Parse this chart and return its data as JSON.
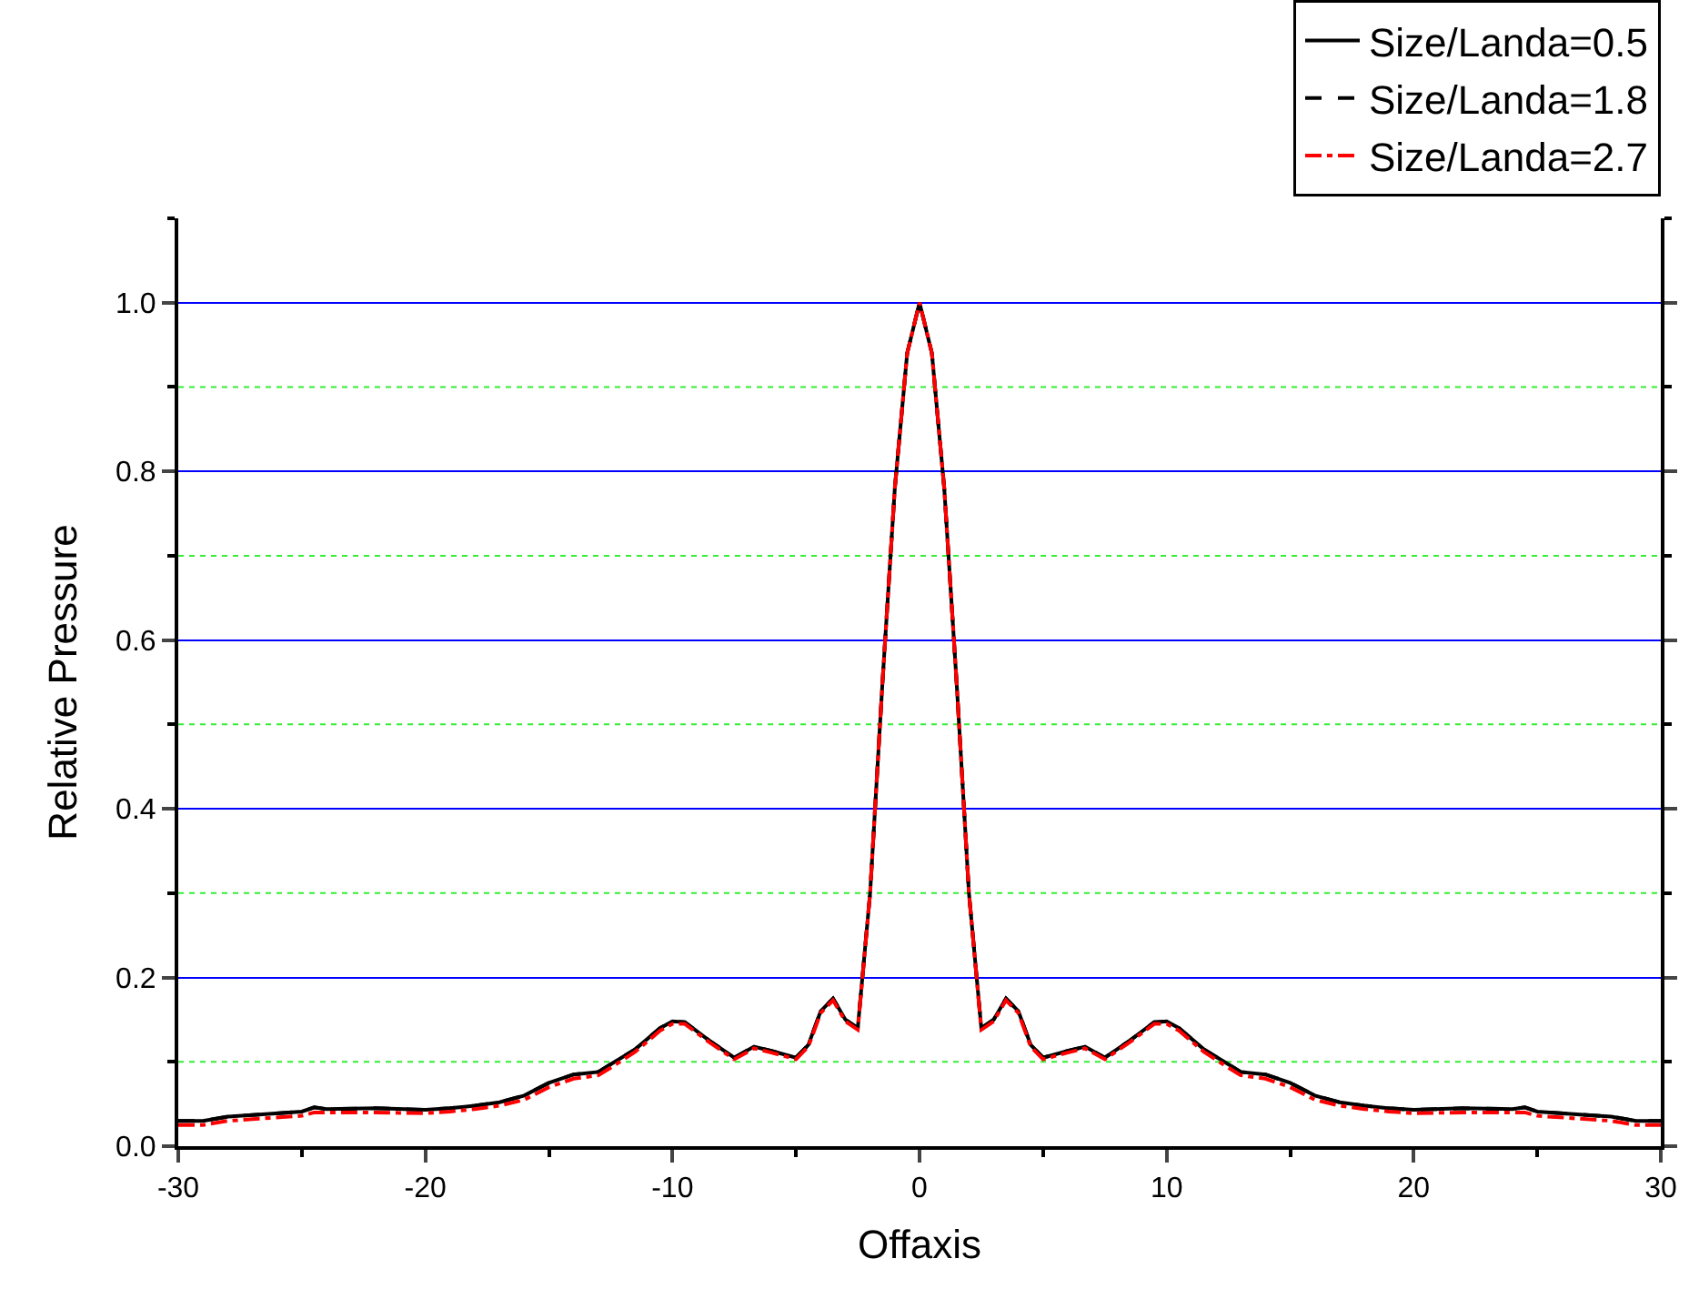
{
  "chart_data": {
    "type": "line",
    "xlabel": "Offaxis",
    "ylabel": "Relative Pressure",
    "x": [
      -30,
      -29,
      -28,
      -27,
      -25,
      -24.5,
      -24,
      -22,
      -20,
      -19,
      -18,
      -17,
      -16,
      -15,
      -14,
      -13,
      -12.5,
      -11.5,
      -10.5,
      -10,
      -9.5,
      -8.5,
      -7.5,
      -6.7,
      -6,
      -5,
      -4.5,
      -4,
      -3.5,
      -3,
      -2.5,
      -2,
      -1.5,
      -1,
      -0.5,
      0,
      0.5,
      1,
      1.5,
      2,
      2.5,
      3,
      3.5,
      4,
      4.5,
      5,
      6,
      6.7,
      7.5,
      8.5,
      9.5,
      10,
      10.5,
      11.5,
      12.5,
      13,
      14,
      15,
      16,
      17,
      18,
      19,
      20,
      22,
      24,
      24.5,
      25,
      27,
      28,
      29,
      30
    ],
    "series": [
      {
        "name": "Size/Landa=0.5",
        "color": "#000000",
        "line_style": "solid",
        "values": [
          0.03,
          0.03,
          0.035,
          0.037,
          0.041,
          0.046,
          0.044,
          0.045,
          0.043,
          0.045,
          0.048,
          0.052,
          0.06,
          0.075,
          0.085,
          0.088,
          0.097,
          0.115,
          0.14,
          0.148,
          0.147,
          0.125,
          0.105,
          0.118,
          0.113,
          0.105,
          0.12,
          0.16,
          0.175,
          0.15,
          0.14,
          0.3,
          0.55,
          0.78,
          0.94,
          1.0,
          0.94,
          0.78,
          0.55,
          0.3,
          0.14,
          0.15,
          0.175,
          0.16,
          0.12,
          0.105,
          0.113,
          0.118,
          0.105,
          0.125,
          0.147,
          0.148,
          0.14,
          0.115,
          0.097,
          0.088,
          0.085,
          0.075,
          0.06,
          0.052,
          0.048,
          0.045,
          0.043,
          0.045,
          0.044,
          0.046,
          0.041,
          0.037,
          0.035,
          0.03,
          0.03
        ]
      },
      {
        "name": "Size/Landa=1.8",
        "color": "#000000",
        "line_style": "dashed",
        "values": [
          0.03,
          0.03,
          0.035,
          0.037,
          0.041,
          0.046,
          0.044,
          0.045,
          0.043,
          0.045,
          0.048,
          0.052,
          0.06,
          0.075,
          0.085,
          0.088,
          0.097,
          0.115,
          0.14,
          0.148,
          0.147,
          0.125,
          0.105,
          0.118,
          0.113,
          0.105,
          0.12,
          0.16,
          0.175,
          0.15,
          0.14,
          0.3,
          0.55,
          0.78,
          0.94,
          1.0,
          0.94,
          0.78,
          0.55,
          0.3,
          0.14,
          0.15,
          0.175,
          0.16,
          0.12,
          0.105,
          0.113,
          0.118,
          0.105,
          0.125,
          0.147,
          0.148,
          0.14,
          0.115,
          0.097,
          0.088,
          0.085,
          0.075,
          0.06,
          0.052,
          0.048,
          0.045,
          0.043,
          0.045,
          0.044,
          0.046,
          0.041,
          0.037,
          0.035,
          0.03,
          0.03
        ]
      },
      {
        "name": "Size/Landa=2.7",
        "color": "#ff0000",
        "line_style": "dashdot",
        "values": [
          0.025,
          0.025,
          0.03,
          0.032,
          0.036,
          0.04,
          0.04,
          0.04,
          0.039,
          0.041,
          0.044,
          0.048,
          0.055,
          0.07,
          0.08,
          0.084,
          0.093,
          0.112,
          0.137,
          0.145,
          0.145,
          0.123,
          0.103,
          0.116,
          0.111,
          0.103,
          0.118,
          0.158,
          0.173,
          0.148,
          0.138,
          0.3,
          0.55,
          0.78,
          0.94,
          1.0,
          0.94,
          0.78,
          0.55,
          0.3,
          0.138,
          0.148,
          0.173,
          0.158,
          0.118,
          0.103,
          0.111,
          0.116,
          0.103,
          0.123,
          0.145,
          0.145,
          0.137,
          0.112,
          0.093,
          0.084,
          0.08,
          0.07,
          0.055,
          0.048,
          0.044,
          0.041,
          0.039,
          0.04,
          0.04,
          0.04,
          0.036,
          0.032,
          0.03,
          0.025,
          0.025
        ]
      }
    ],
    "xlim": [
      -30,
      30
    ],
    "xticks": [
      -30,
      -20,
      -10,
      0,
      10,
      20,
      30
    ],
    "ylim": [
      0,
      1.1
    ],
    "yticks": [
      {
        "value": 0,
        "label": "0.0"
      },
      0.2,
      0.4,
      0.6,
      0.8,
      {
        "value": 1,
        "label": "1.0"
      }
    ],
    "ref_lines": [
      {
        "axis": "y",
        "value": 0.1,
        "color": "#33ee33",
        "line_style": "dotted"
      },
      {
        "axis": "y",
        "value": 0.3,
        "color": "#33ee33",
        "line_style": "dotted"
      },
      {
        "axis": "y",
        "value": 0.5,
        "color": "#33ee33",
        "line_style": "dotted"
      },
      {
        "axis": "y",
        "value": 0.7,
        "color": "#33ee33",
        "line_style": "dotted"
      },
      {
        "axis": "y",
        "value": 0.9,
        "color": "#33ee33",
        "line_style": "dotted"
      }
    ],
    "grid": "y",
    "legend": "top right",
    "marker": "none"
  }
}
